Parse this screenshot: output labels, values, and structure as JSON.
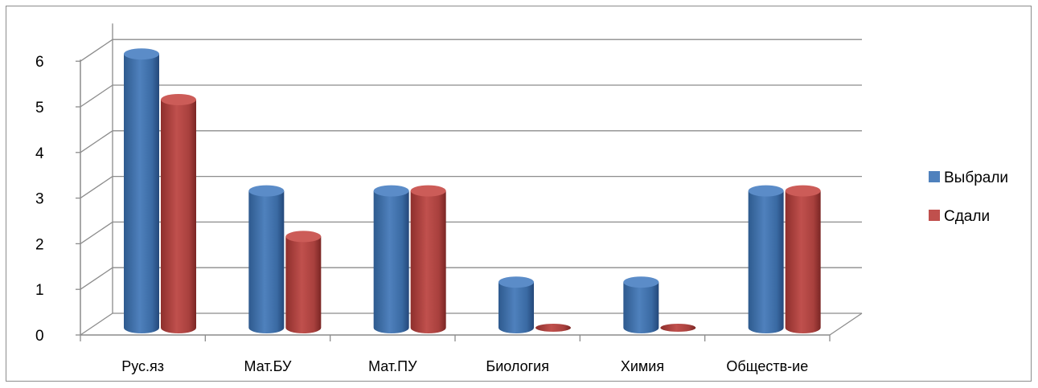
{
  "chart_data": {
    "type": "bar",
    "title": "",
    "xlabel": "",
    "ylabel": "",
    "categories": [
      "Рус.яз",
      "Мат.БУ",
      "Мат.ПУ",
      "Биология",
      "Химия",
      "Обществ-ие"
    ],
    "series": [
      {
        "name": "Выбрали",
        "values": [
          6,
          3,
          3,
          1,
          1,
          3
        ],
        "color": "#4f81bd"
      },
      {
        "name": "Сдали",
        "values": [
          5,
          2,
          3,
          0,
          0,
          3
        ],
        "color": "#c0504d"
      }
    ],
    "y_ticks": [
      "0",
      "1",
      "2",
      "3",
      "4",
      "5",
      "6"
    ],
    "ylim": [
      0,
      6
    ],
    "grid": true,
    "legend_position": "right",
    "style": "3d-cylinder"
  }
}
